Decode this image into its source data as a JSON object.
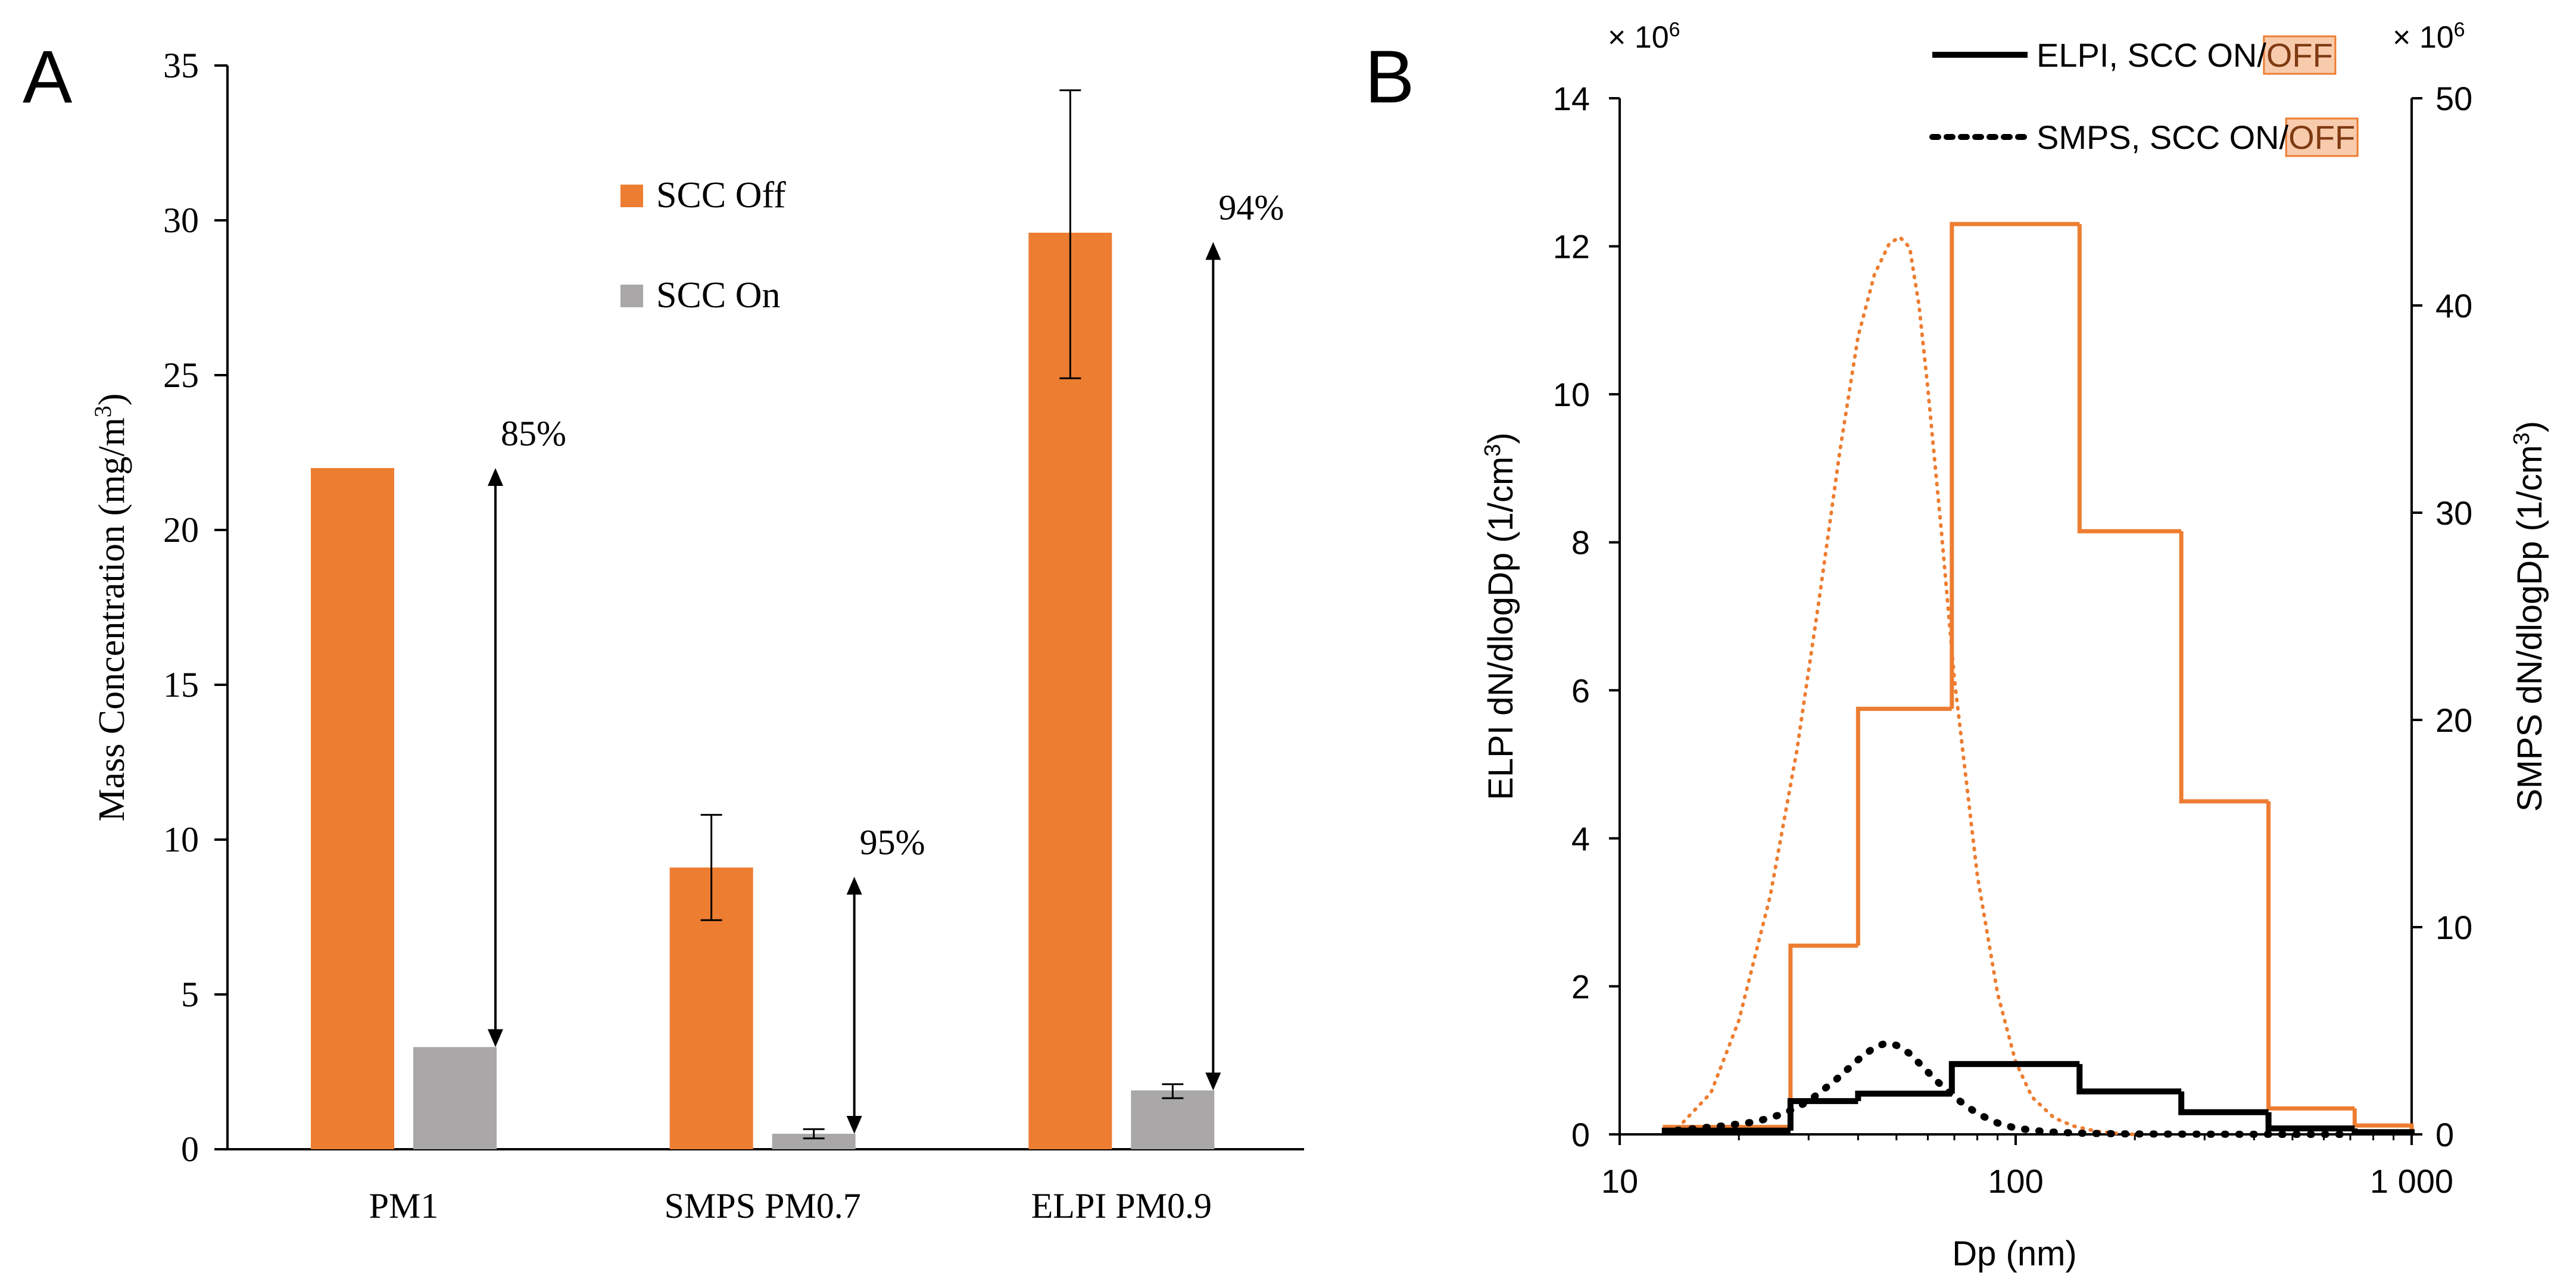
{
  "colors": {
    "orange": "#ED7D31",
    "gray": "#A9A7A7",
    "black": "#000000",
    "offHighlight": "#F8CBAD"
  },
  "chart_data": [
    {
      "panel": "A",
      "type": "bar",
      "categories": [
        "PM1",
        "SMPS PM0.7",
        "ELPI PM0.9"
      ],
      "series": [
        {
          "name": "SCC Off",
          "values": [
            22.0,
            9.1,
            29.6
          ],
          "err_low": [
            null,
            7.4,
            24.9
          ],
          "err_high": [
            null,
            10.8,
            34.2
          ]
        },
        {
          "name": "SCC On",
          "values": [
            3.3,
            0.5,
            1.9
          ],
          "err_low": [
            null,
            0.35,
            1.65
          ],
          "err_high": [
            null,
            0.65,
            2.1
          ]
        }
      ],
      "ylabel": "Mass Concentration  (mg/m",
      "ylabel_sup": "3",
      "ylabel_close": ")",
      "ylim": [
        0,
        35
      ],
      "yticks": [
        0,
        5,
        10,
        15,
        20,
        25,
        30,
        35
      ],
      "legend_position": "upper-center",
      "annotations": [
        {
          "category": "PM1",
          "label": "85%",
          "from": 22.0,
          "to": 3.3
        },
        {
          "category": "SMPS PM0.7",
          "label": "95%",
          "from": 8.8,
          "to": 0.5
        },
        {
          "category": "ELPI PM0.9",
          "label": "94%",
          "from": 29.3,
          "to": 1.9
        }
      ]
    },
    {
      "panel": "B",
      "type": "line",
      "xscale": "log",
      "xlim": [
        10,
        1000
      ],
      "xticks": [
        {
          "value": 10,
          "label": "10"
        },
        {
          "value": 100,
          "label": "100"
        },
        {
          "value": 1000,
          "label": "1 000"
        }
      ],
      "xlabel": "Dp (nm)",
      "ylabel_left": "ELPI dN/dlogDp (1/cm",
      "ylabel_left_close": ")",
      "ylabel_right": "SMPS dN/dlogDp (1/cm",
      "ylabel_right_close": ")",
      "ylabel_sup": "3",
      "ylim_left": [
        0,
        14
      ],
      "ylim_right": [
        0,
        50
      ],
      "yticks_left": [
        0,
        2,
        4,
        6,
        8,
        10,
        12,
        14
      ],
      "yticks_right": [
        0,
        10,
        20,
        30,
        40,
        50
      ],
      "scale_prefix": "× 10",
      "scale_exp": "6",
      "legend": [
        {
          "text": "ELPI, SCC ON/",
          "highlight": "OFF",
          "style": "solid"
        },
        {
          "text": "SMPS, SCC ON/",
          "highlight": "OFF",
          "style": "dotted"
        }
      ],
      "series": [
        {
          "name": "ELPI SCC OFF",
          "axis": "left",
          "style": "step",
          "color": "orange",
          "bins": [
            {
              "lo": 13,
              "hi": 27,
              "value": 0.1
            },
            {
              "lo": 27,
              "hi": 40,
              "value": 2.55
            },
            {
              "lo": 40,
              "hi": 69,
              "value": 5.75
            },
            {
              "lo": 69,
              "hi": 145,
              "value": 12.3
            },
            {
              "lo": 145,
              "hi": 262,
              "value": 8.15
            },
            {
              "lo": 262,
              "hi": 435,
              "value": 4.5
            },
            {
              "lo": 435,
              "hi": 718,
              "value": 0.35
            },
            {
              "lo": 718,
              "hi": 1000,
              "value": 0.12
            }
          ]
        },
        {
          "name": "ELPI SCC ON",
          "axis": "left",
          "style": "step",
          "color": "black",
          "bins": [
            {
              "lo": 13,
              "hi": 27,
              "value": 0.05
            },
            {
              "lo": 27,
              "hi": 40,
              "value": 0.45
            },
            {
              "lo": 40,
              "hi": 69,
              "value": 0.55
            },
            {
              "lo": 69,
              "hi": 145,
              "value": 0.95
            },
            {
              "lo": 145,
              "hi": 262,
              "value": 0.58
            },
            {
              "lo": 262,
              "hi": 435,
              "value": 0.3
            },
            {
              "lo": 435,
              "hi": 718,
              "value": 0.08
            },
            {
              "lo": 718,
              "hi": 1000,
              "value": 0.03
            }
          ]
        },
        {
          "name": "SMPS SCC OFF",
          "axis": "right",
          "style": "dotted",
          "color": "orange",
          "x": [
            14,
            17,
            20,
            24,
            28,
            32,
            36,
            40,
            44,
            48,
            51,
            54,
            57,
            60,
            65,
            70,
            80,
            90,
            100,
            110,
            125,
            140,
            160,
            180,
            200
          ],
          "y": [
            0.3,
            2.0,
            5.5,
            11.5,
            18.5,
            26.0,
            33.0,
            38.5,
            41.5,
            43.0,
            43.3,
            42.8,
            40.0,
            36.0,
            29.0,
            22.0,
            12.5,
            6.8,
            3.5,
            1.8,
            0.8,
            0.4,
            0.15,
            0.05,
            0.0
          ]
        },
        {
          "name": "SMPS SCC ON",
          "axis": "right",
          "style": "dotted",
          "color": "black",
          "x": [
            14,
            18,
            22,
            26,
            30,
            35,
            40,
            44,
            47,
            50,
            54,
            58,
            63,
            70,
            80,
            90,
            100,
            120,
            150,
            200,
            300,
            500,
            700
          ],
          "y": [
            0.2,
            0.4,
            0.6,
            1.0,
            1.6,
            2.6,
            3.6,
            4.2,
            4.4,
            4.3,
            3.9,
            3.3,
            2.6,
            1.8,
            1.0,
            0.55,
            0.3,
            0.12,
            0.05,
            0.02,
            0.01,
            0.0,
            0.0
          ]
        }
      ]
    }
  ]
}
